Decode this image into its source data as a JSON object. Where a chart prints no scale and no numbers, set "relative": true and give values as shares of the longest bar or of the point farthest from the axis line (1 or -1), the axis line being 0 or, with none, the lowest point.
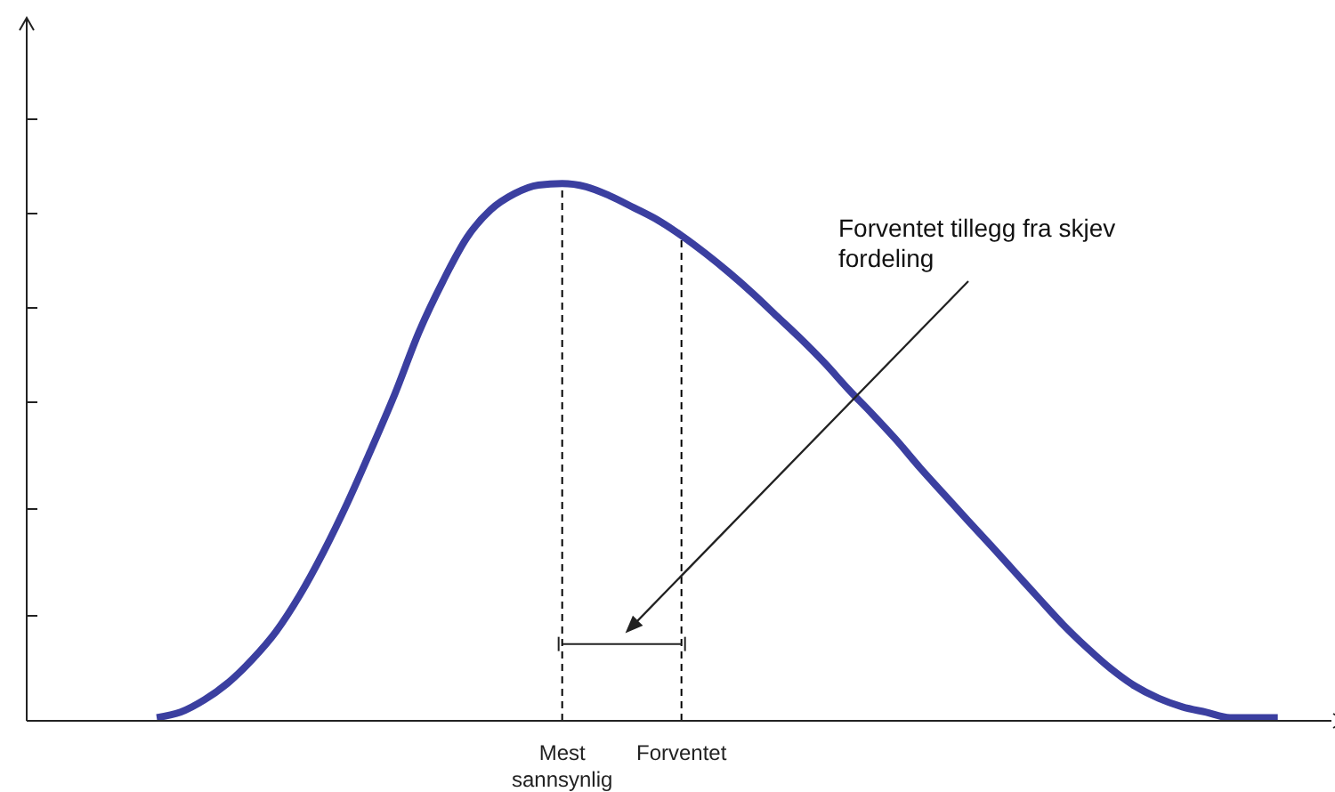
{
  "chart_data": {
    "type": "line",
    "relative": true,
    "categories": [
      null,
      null,
      null,
      null,
      null,
      null,
      null,
      null,
      null,
      null,
      null,
      null,
      null,
      null,
      null,
      null,
      null,
      "Mest sannsynlig",
      null,
      null,
      null,
      null,
      "Forventet",
      null,
      null,
      null,
      null,
      null,
      null,
      null,
      null,
      null,
      null,
      null,
      null,
      null,
      null,
      null,
      null,
      null,
      null,
      null,
      null,
      null,
      null,
      null,
      null,
      null
    ],
    "series": [
      {
        "color": "#3b3fa0",
        "values": [
          0.006,
          0.016,
          0.039,
          0.071,
          0.114,
          0.166,
          0.234,
          0.315,
          0.406,
          0.506,
          0.61,
          0.724,
          0.818,
          0.899,
          0.951,
          0.981,
          0.997,
          1,
          0.994,
          0.977,
          0.955,
          0.932,
          0.903,
          0.87,
          0.834,
          0.795,
          0.753,
          0.711,
          0.666,
          0.617,
          0.571,
          0.523,
          0.471,
          0.422,
          0.373,
          0.325,
          0.276,
          0.227,
          0.179,
          0.136,
          0.097,
          0.065,
          0.042,
          0.026,
          0.016,
          0.006,
          0.006,
          0.006
        ]
      }
    ],
    "ref_lines": [
      {
        "axis": "x",
        "value": "Mest sannsynlig",
        "color": "#000000",
        "line_style": "dashed"
      },
      {
        "axis": "x",
        "value": "Forventet",
        "color": "#000000",
        "line_style": "dashed"
      }
    ],
    "annotations": [
      "Forventet tillegg fra skjev fordeling"
    ],
    "marker": "none",
    "line_style": "solid"
  }
}
